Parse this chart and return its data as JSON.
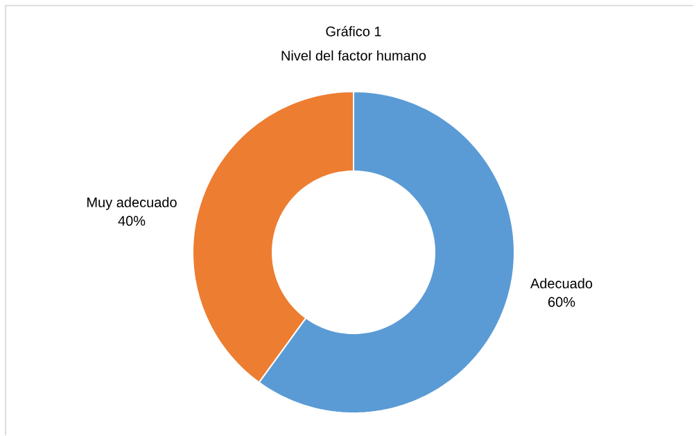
{
  "chart_data": {
    "type": "donut",
    "title": "Gráfico 1",
    "subtitle": "Nivel del factor humano",
    "categories": [
      "Adecuado",
      "Muy adecuado"
    ],
    "values": [
      60,
      40
    ],
    "colors": [
      "#5b9bd5",
      "#ed7d31"
    ],
    "value_labels": [
      "60%",
      "40%"
    ]
  }
}
